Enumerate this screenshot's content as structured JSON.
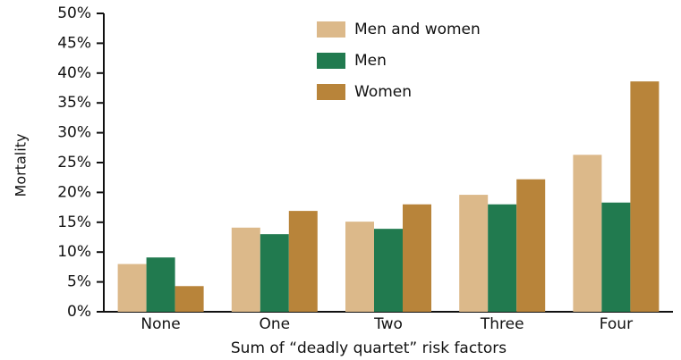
{
  "chart_data": {
    "type": "bar",
    "x_label": "Sum of “deadly quartet” risk factors",
    "y_label": "Mortality",
    "categories": [
      "None",
      "One",
      "Two",
      "Three",
      "Four"
    ],
    "series": [
      {
        "name": "Men and women",
        "color": "#dcb98a",
        "values": [
          8,
          14.1,
          15.1,
          19.6,
          26.3
        ]
      },
      {
        "name": "Men",
        "color": "#217a4f",
        "values": [
          9.1,
          13,
          13.9,
          18,
          18.3
        ]
      },
      {
        "name": "Women",
        "color": "#b8843a",
        "values": [
          4.3,
          16.9,
          18,
          22.2,
          38.6
        ]
      }
    ],
    "ylim": [
      0,
      50
    ],
    "yticks": [
      {
        "value": 0,
        "label": "0%"
      },
      {
        "value": 5,
        "label": "5%"
      },
      {
        "value": 10,
        "label": "10%"
      },
      {
        "value": 15,
        "label": "15%"
      },
      {
        "value": 20,
        "label": "20%"
      },
      {
        "value": 25,
        "label": "25%"
      },
      {
        "value": 30,
        "label": "30%"
      },
      {
        "value": 35,
        "label": "35%"
      },
      {
        "value": 40,
        "label": "40%"
      },
      {
        "value": 45,
        "label": "45%"
      },
      {
        "value": 50,
        "label": "50%"
      }
    ],
    "legend": "top"
  }
}
